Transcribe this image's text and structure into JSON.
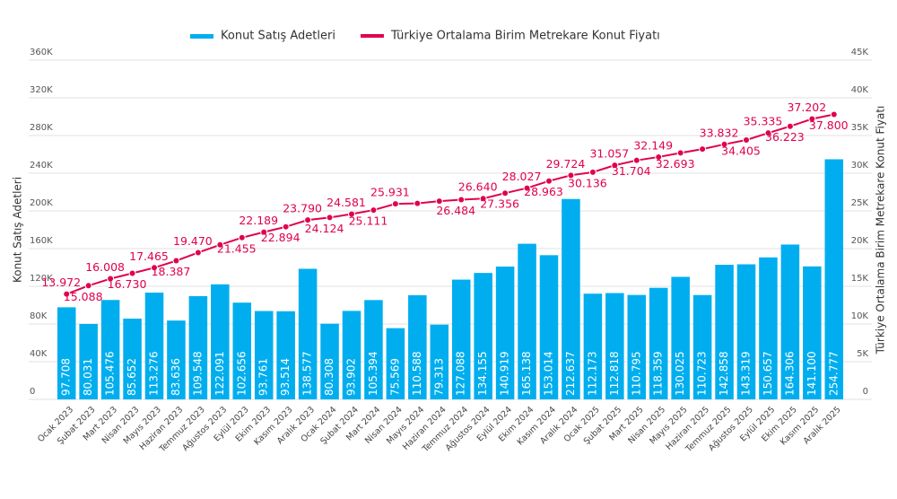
{
  "chart_data": {
    "type": "bar",
    "y_label": "Konut Satış Adetleri",
    "y2_label": "Türkiye Ortalama Birim Metrekare Konut Fiyatı",
    "categories": [
      "Ocak 2023",
      "Şubat 2023",
      "Mart 2023",
      "Nisan 2023",
      "Mayıs 2023",
      "Haziran 2023",
      "Temmuz 2023",
      "Ağustos 2023",
      "Eylül 2023",
      "Ekim 2023",
      "Kasım 2023",
      "Aralık 2023",
      "Ocak 2024",
      "Şubat 2024",
      "Mart 2024",
      "Nisan 2024",
      "Mayıs 2024",
      "Haziran 2024",
      "Temmuz 2024",
      "Ağustos 2024",
      "Eylül 2024",
      "Ekim 2024",
      "Kasım 2024",
      "Aralık 2024",
      "Ocak 2025",
      "Şubat 2025",
      "Mart 2025",
      "Nisan 2025",
      "Mayıs 2025",
      "Haziran 2025",
      "Temmuz 2025",
      "Ağustos 2025",
      "Eylül 2025",
      "Ekim 2025",
      "Kasım 2025",
      "Aralık 2025"
    ],
    "series": [
      {
        "name": "Konut Satış Adetleri",
        "type": "bar",
        "axis": "y",
        "color": "#00aeef",
        "values": [
          97708,
          80031,
          105476,
          85652,
          113276,
          83636,
          109548,
          122091,
          102656,
          93761,
          93514,
          138577,
          80308,
          93902,
          105394,
          75569,
          110588,
          79313,
          127088,
          134155,
          140919,
          165138,
          153014,
          212637,
          112173,
          112818,
          110795,
          118359,
          130025,
          110723,
          142858,
          143319,
          150657,
          164306,
          141100,
          254777
        ],
        "value_labels": [
          "97.708",
          "80.031",
          "105.476",
          "85.652",
          "113.276",
          "83.636",
          "109.548",
          "122.091",
          "102.656",
          "93.761",
          "93.514",
          "138.577",
          "80.308",
          "93.902",
          "105.394",
          "75.569",
          "110.588",
          "79.313",
          "127.088",
          "134.155",
          "140.919",
          "165.138",
          "153.014",
          "212.637",
          "112.173",
          "112.818",
          "110.795",
          "118.359",
          "130.025",
          "110.723",
          "142.858",
          "143.319",
          "150.657",
          "164.306",
          "141.100",
          "254.777"
        ]
      },
      {
        "name": "Türkiye Ortalama Birim Metrekare Konut Fiyatı",
        "type": "line",
        "axis": "y2",
        "color": "#e0004d",
        "values": [
          13972,
          15088,
          16008,
          16730,
          17465,
          18387,
          19470,
          20500,
          21455,
          22189,
          22894,
          23790,
          24124,
          24581,
          25111,
          25931,
          26000,
          26300,
          26484,
          26640,
          27356,
          28027,
          28963,
          29724,
          30136,
          31057,
          31704,
          32149,
          32693,
          33200,
          33832,
          34405,
          35335,
          36223,
          37202,
          37800
        ],
        "value_labels": [
          "13.972",
          "15.088",
          "16.008",
          "16.730",
          "17.465",
          "18.387",
          "19.470",
          null,
          "21.455",
          "22.189",
          "22.894",
          "23.790",
          "24.124",
          "24.581",
          "25.111",
          "25.931",
          null,
          null,
          "26.484",
          "26.640",
          "27.356",
          "28.027",
          "28.963",
          "29.724",
          "30.136",
          "31.057",
          "31.704",
          "32.149",
          "32.693",
          null,
          "33.832",
          "34.405",
          "35.335",
          "36.223",
          "37.202",
          "37.800"
        ]
      }
    ],
    "ylim": [
      0,
      360000
    ],
    "yticks": [
      0,
      {
        "value": 40000,
        "label": "40K"
      },
      {
        "value": 80000,
        "label": "80K"
      },
      {
        "value": 120000,
        "label": "120K"
      },
      {
        "value": 160000,
        "label": "160K"
      },
      {
        "value": 200000,
        "label": "200K"
      },
      {
        "value": 240000,
        "label": "240K"
      },
      {
        "value": 280000,
        "label": "280K"
      },
      {
        "value": 320000,
        "label": "320K"
      },
      {
        "value": 360000,
        "label": "360K"
      }
    ],
    "y2lim": [
      0,
      45000
    ],
    "y2ticks": [
      0,
      {
        "value": 5000,
        "label": "5K"
      },
      {
        "value": 10000,
        "label": "10K"
      },
      {
        "value": 15000,
        "label": "15K"
      },
      {
        "value": 20000,
        "label": "20K"
      },
      {
        "value": 25000,
        "label": "25K"
      },
      {
        "value": 30000,
        "label": "30K"
      },
      {
        "value": 35000,
        "label": "35K"
      },
      {
        "value": 40000,
        "label": "40K"
      },
      {
        "value": 45000,
        "label": "45K"
      }
    ],
    "grid": true,
    "legend": "top"
  }
}
